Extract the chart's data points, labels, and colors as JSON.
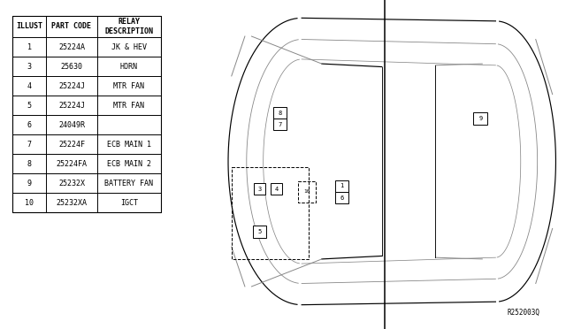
{
  "table_data": [
    [
      "ILLUST",
      "PART CODE",
      "RELAY\nDESCRIPTION"
    ],
    [
      "1",
      "25224A",
      "JK & HEV"
    ],
    [
      "3",
      "25630",
      "HORN"
    ],
    [
      "4",
      "25224J",
      "MTR FAN"
    ],
    [
      "5",
      "25224J",
      "MTR FAN"
    ],
    [
      "6",
      "24049R",
      ""
    ],
    [
      "7",
      "25224F",
      "ECB MAIN 1"
    ],
    [
      "8",
      "25224FA",
      "ECB MAIN 2"
    ],
    [
      "9",
      "25232X",
      "BATTERY FAN"
    ],
    [
      "10",
      "25232XA",
      "IGCT"
    ]
  ],
  "ref_code": "R252003Q",
  "font_size": 6.5,
  "line_color": "#000000",
  "gray_color": "#888888"
}
